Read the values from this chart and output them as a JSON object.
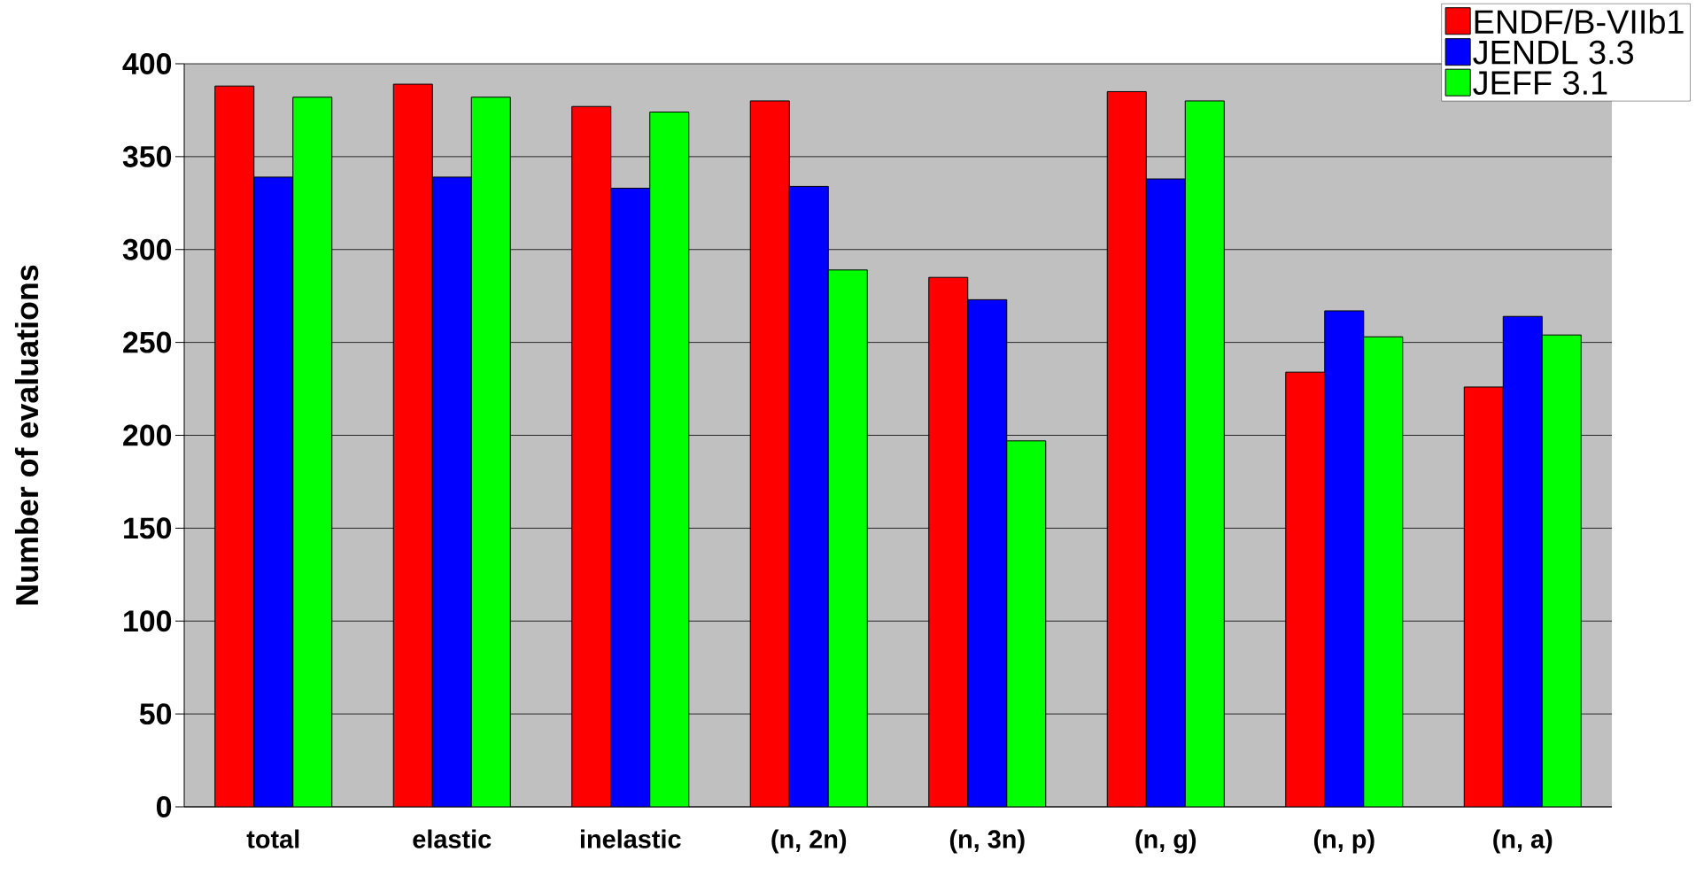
{
  "chart_data": {
    "type": "bar",
    "ylabel": "Number of evaluations",
    "categories": [
      "total",
      "elastic",
      "inelastic",
      "(n, 2n)",
      "(n, 3n)",
      "(n, g)",
      "(n, p)",
      "(n, a)"
    ],
    "series": [
      {
        "name": "ENDF/B-VIIb1",
        "color": "#ff0000",
        "values": [
          388,
          389,
          377,
          380,
          285,
          385,
          234,
          226
        ]
      },
      {
        "name": "JENDL 3.3",
        "color": "#0000ff",
        "values": [
          339,
          339,
          333,
          334,
          273,
          338,
          267,
          264
        ]
      },
      {
        "name": "JEFF 3.1",
        "color": "#00ff00",
        "values": [
          382,
          382,
          374,
          289,
          197,
          380,
          253,
          254
        ]
      }
    ],
    "ylim": [
      0,
      400
    ],
    "yticks": [
      0,
      50,
      100,
      150,
      200,
      250,
      300,
      350,
      400
    ],
    "grid": "y",
    "legend": "top right"
  }
}
